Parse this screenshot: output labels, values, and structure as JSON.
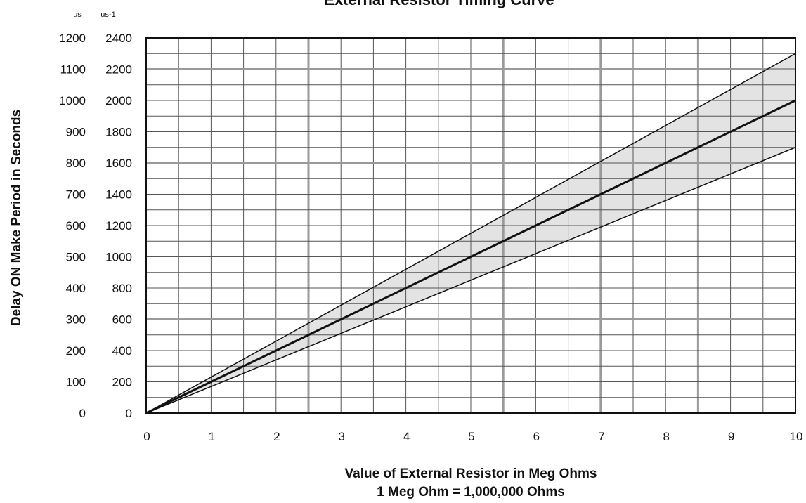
{
  "chart_data": {
    "type": "line",
    "title": "External Resistor Timing Curve",
    "xlabel": "Value of External Resistor in Meg Ohms",
    "xlabel2": "1 Meg Ohm = 1,000,000 Ohms",
    "ylabel": "Delay ON Make Period in Seconds",
    "y_units": [
      "us",
      "us-1"
    ],
    "xlim": [
      0,
      10
    ],
    "ylim": [
      0,
      1200
    ],
    "x_ticks": [
      "0",
      "1",
      "2",
      "3",
      "4",
      "5",
      "6",
      "7",
      "8",
      "9",
      "10"
    ],
    "y_ticks_left": [
      "0",
      "100",
      "200",
      "300",
      "400",
      "500",
      "600",
      "700",
      "800",
      "900",
      "1000",
      "1100",
      "1200"
    ],
    "y_ticks_right": [
      "0",
      "200",
      "400",
      "600",
      "800",
      "1000",
      "1200",
      "1400",
      "1600",
      "1800",
      "2000",
      "2200",
      "2400"
    ],
    "grid": true,
    "series": [
      {
        "x": [
          0,
          10
        ],
        "y": [
          0,
          1150
        ],
        "style": "upper-bound"
      },
      {
        "x": [
          0,
          10
        ],
        "y": [
          0,
          1000
        ],
        "style": "nominal"
      },
      {
        "x": [
          0,
          10
        ],
        "y": [
          0,
          850
        ],
        "style": "lower-bound"
      }
    ],
    "band_fill": "#e3e3e3",
    "colors": {
      "grid": "#555555",
      "grid_major": "#9a9a9a",
      "line": "#111111"
    }
  }
}
